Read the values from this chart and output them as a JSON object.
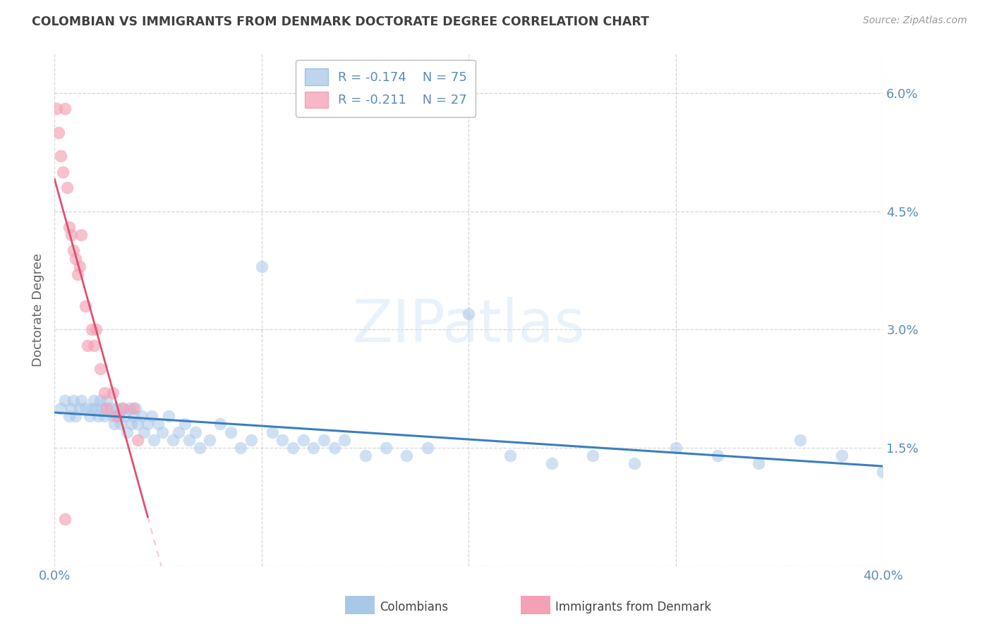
{
  "title": "COLOMBIAN VS IMMIGRANTS FROM DENMARK DOCTORATE DEGREE CORRELATION CHART",
  "source": "Source: ZipAtlas.com",
  "ylabel": "Doctorate Degree",
  "watermark": "ZIPatlas",
  "xlim": [
    0.0,
    0.4
  ],
  "ylim": [
    0.0,
    0.065
  ],
  "yticks": [
    0.0,
    0.015,
    0.03,
    0.045,
    0.06
  ],
  "ytick_labels": [
    "",
    "1.5%",
    "3.0%",
    "4.5%",
    "6.0%"
  ],
  "xticks": [
    0.0,
    0.1,
    0.2,
    0.3,
    0.4
  ],
  "xtick_labels": [
    "0.0%",
    "",
    "",
    "",
    "40.0%"
  ],
  "colombian_R": -0.174,
  "colombian_N": 75,
  "denmark_R": -0.211,
  "denmark_N": 27,
  "legend_label_1": "Colombians",
  "legend_label_2": "Immigrants from Denmark",
  "color_blue": "#A8C8E8",
  "color_pink": "#F4A0B5",
  "trendline_blue": "#3A7FC1",
  "trendline_pink": "#E05070",
  "trendline_pink_dashed": "#F4A0B5",
  "background": "#FFFFFF",
  "grid_color": "#CCCCCC",
  "title_color": "#404040",
  "axis_color": "#5B8DB8",
  "colombian_x": [
    0.003,
    0.005,
    0.007,
    0.008,
    0.009,
    0.01,
    0.012,
    0.013,
    0.015,
    0.017,
    0.018,
    0.019,
    0.02,
    0.021,
    0.022,
    0.023,
    0.024,
    0.025,
    0.027,
    0.028,
    0.029,
    0.03,
    0.031,
    0.032,
    0.033,
    0.034,
    0.035,
    0.036,
    0.037,
    0.038,
    0.039,
    0.04,
    0.042,
    0.043,
    0.045,
    0.047,
    0.048,
    0.05,
    0.052,
    0.055,
    0.057,
    0.06,
    0.063,
    0.065,
    0.068,
    0.07,
    0.075,
    0.08,
    0.085,
    0.09,
    0.095,
    0.1,
    0.105,
    0.11,
    0.115,
    0.12,
    0.125,
    0.13,
    0.135,
    0.14,
    0.15,
    0.16,
    0.17,
    0.18,
    0.2,
    0.22,
    0.24,
    0.26,
    0.28,
    0.3,
    0.32,
    0.34,
    0.36,
    0.38,
    0.4
  ],
  "colombian_y": [
    0.02,
    0.021,
    0.019,
    0.02,
    0.021,
    0.019,
    0.02,
    0.021,
    0.02,
    0.019,
    0.02,
    0.021,
    0.02,
    0.019,
    0.021,
    0.02,
    0.019,
    0.021,
    0.02,
    0.019,
    0.018,
    0.02,
    0.019,
    0.018,
    0.02,
    0.019,
    0.017,
    0.02,
    0.018,
    0.019,
    0.02,
    0.018,
    0.019,
    0.017,
    0.018,
    0.019,
    0.016,
    0.018,
    0.017,
    0.019,
    0.016,
    0.017,
    0.018,
    0.016,
    0.017,
    0.015,
    0.016,
    0.018,
    0.017,
    0.015,
    0.016,
    0.038,
    0.017,
    0.016,
    0.015,
    0.016,
    0.015,
    0.016,
    0.015,
    0.016,
    0.014,
    0.015,
    0.014,
    0.015,
    0.032,
    0.014,
    0.013,
    0.014,
    0.013,
    0.015,
    0.014,
    0.013,
    0.016,
    0.014,
    0.012
  ],
  "denmark_x": [
    0.001,
    0.002,
    0.003,
    0.004,
    0.005,
    0.006,
    0.007,
    0.008,
    0.009,
    0.01,
    0.011,
    0.012,
    0.013,
    0.015,
    0.016,
    0.018,
    0.019,
    0.02,
    0.022,
    0.024,
    0.025,
    0.028,
    0.03,
    0.033,
    0.038,
    0.04,
    0.005
  ],
  "denmark_y": [
    0.058,
    0.055,
    0.052,
    0.05,
    0.058,
    0.048,
    0.043,
    0.042,
    0.04,
    0.039,
    0.037,
    0.038,
    0.042,
    0.033,
    0.028,
    0.03,
    0.028,
    0.03,
    0.025,
    0.022,
    0.02,
    0.022,
    0.019,
    0.02,
    0.02,
    0.016,
    0.006
  ]
}
